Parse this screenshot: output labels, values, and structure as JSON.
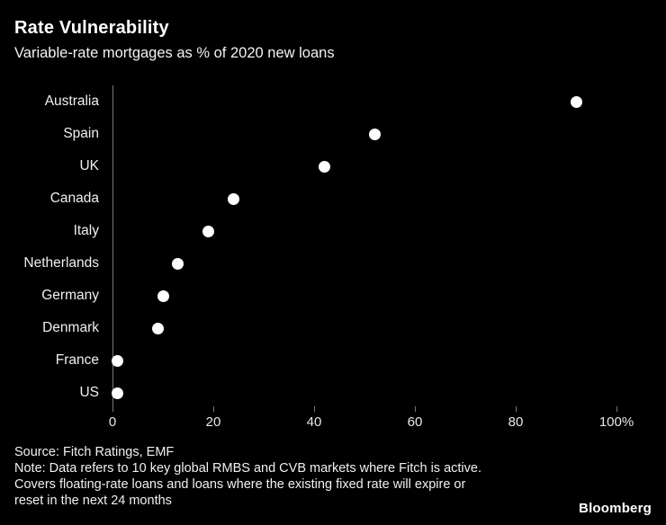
{
  "header": {
    "title": "Rate Vulnerability",
    "subtitle": "Variable-rate mortgages as % of 2020 new loans"
  },
  "chart_data": {
    "type": "scatter",
    "orientation": "horizontal",
    "title": "Rate Vulnerability",
    "subtitle": "Variable-rate mortgages as % of 2020 new loans",
    "categories": [
      "Australia",
      "Spain",
      "UK",
      "Canada",
      "Italy",
      "Netherlands",
      "Germany",
      "Denmark",
      "France",
      "US"
    ],
    "values": [
      92,
      52,
      42,
      24,
      19,
      13,
      10,
      9,
      1,
      1
    ],
    "xlabel": "",
    "ylabel": "",
    "xlim": [
      0,
      100
    ],
    "x_ticks": [
      0,
      20,
      40,
      60,
      80,
      100
    ],
    "x_tick_labels": [
      "0",
      "20",
      "40",
      "60",
      "80",
      "100%"
    ],
    "grid": false,
    "legend": "none",
    "marker_color": "#ffffff",
    "background_color": "#000000"
  },
  "footer": {
    "source": "Source: Fitch Ratings, EMF",
    "note_lines": [
      "Note: Data refers to 10 key global RMBS and CVB markets where Fitch is active.",
      "Covers floating-rate loans and loans where the existing fixed rate will expire or",
      "reset in the next 24 months"
    ],
    "brand": "Bloomberg"
  }
}
